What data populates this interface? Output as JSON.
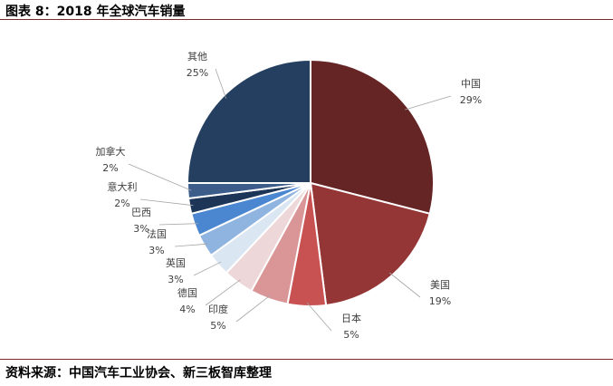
{
  "figure_title": "图表 8：2018 年全球汽车销量",
  "source": "资料来源：中国汽车工业协会、新三板智库整理",
  "chart_data": {
    "type": "pie",
    "title": "",
    "start_angle_deg": 0,
    "direction": "clockwise",
    "slices": [
      {
        "label": "中国",
        "value": 29,
        "pct": "29%",
        "color": "#662525"
      },
      {
        "label": "美国",
        "value": 19,
        "pct": "19%",
        "color": "#953636"
      },
      {
        "label": "日本",
        "value": 5,
        "pct": "5%",
        "color": "#c85252"
      },
      {
        "label": "印度",
        "value": 5,
        "pct": "5%",
        "color": "#da9696"
      },
      {
        "label": "德国",
        "value": 4,
        "pct": "4%",
        "color": "#eed7d8"
      },
      {
        "label": "英国",
        "value": 3,
        "pct": "3%",
        "color": "#dbe6f3"
      },
      {
        "label": "法国",
        "value": 3,
        "pct": "3%",
        "color": "#90b4e0"
      },
      {
        "label": "巴西",
        "value": 3,
        "pct": "3%",
        "color": "#4b87d1"
      },
      {
        "label": "意大利",
        "value": 2,
        "pct": "2%",
        "color": "#1d3556"
      },
      {
        "label": "加拿大",
        "value": 2,
        "pct": "2%",
        "color": "#3c5c8a"
      },
      {
        "label": "其他",
        "value": 25,
        "pct": "25%",
        "color": "#243f60"
      }
    ]
  }
}
